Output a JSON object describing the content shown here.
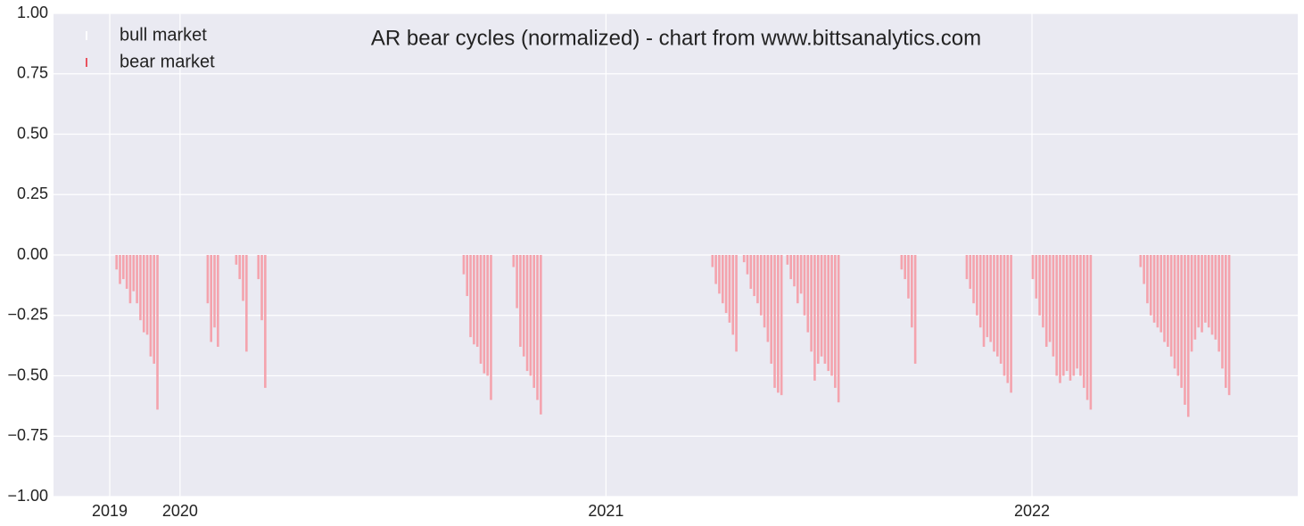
{
  "chart_data": {
    "type": "bar",
    "title": "AR bear cycles (normalized)  - chart from www.bittsanalytics.com",
    "series": [
      {
        "name": "bull market",
        "color": "#ffffff",
        "x": [],
        "values": []
      },
      {
        "name": "bear market",
        "color": "#f4a3ad",
        "x": [
          2019.851,
          2019.859,
          2019.867,
          2019.875,
          2019.883,
          2019.891,
          2019.899,
          2019.907,
          2019.915,
          2019.923,
          2019.931,
          2019.939,
          2019.947,
          2020.065,
          2020.073,
          2020.081,
          2020.089,
          2020.132,
          2020.14,
          2020.148,
          2020.156,
          2020.184,
          2020.192,
          2020.2,
          2020.666,
          2020.674,
          2020.682,
          2020.69,
          2020.698,
          2020.706,
          2020.714,
          2020.722,
          2020.73,
          2020.783,
          2020.791,
          2020.799,
          2020.807,
          2020.815,
          2020.823,
          2020.831,
          2020.839,
          2020.847,
          2021.25,
          2021.258,
          2021.266,
          2021.274,
          2021.282,
          2021.29,
          2021.298,
          2021.306,
          2021.324,
          2021.332,
          2021.34,
          2021.348,
          2021.356,
          2021.364,
          2021.372,
          2021.38,
          2021.388,
          2021.396,
          2021.404,
          2021.412,
          2021.426,
          2021.434,
          2021.442,
          2021.45,
          2021.458,
          2021.466,
          2021.474,
          2021.482,
          2021.49,
          2021.498,
          2021.506,
          2021.514,
          2021.522,
          2021.53,
          2021.538,
          2021.546,
          2021.694,
          2021.702,
          2021.71,
          2021.718,
          2021.726,
          2021.847,
          2021.855,
          2021.863,
          2021.871,
          2021.879,
          2021.887,
          2021.895,
          2021.903,
          2021.911,
          2021.919,
          2021.927,
          2021.935,
          2021.943,
          2021.951,
          2022.002,
          2022.01,
          2022.018,
          2022.026,
          2022.034,
          2022.042,
          2022.05,
          2022.058,
          2022.066,
          2022.074,
          2022.082,
          2022.09,
          2022.098,
          2022.106,
          2022.114,
          2022.122,
          2022.13,
          2022.138,
          2022.255,
          2022.263,
          2022.271,
          2022.279,
          2022.287,
          2022.295,
          2022.303,
          2022.311,
          2022.319,
          2022.327,
          2022.335,
          2022.343,
          2022.351,
          2022.359,
          2022.367,
          2022.375,
          2022.383,
          2022.391,
          2022.399,
          2022.407,
          2022.415,
          2022.423,
          2022.431,
          2022.439,
          2022.447,
          2022.455,
          2022.463
        ],
        "values": [
          -0.06,
          -0.12,
          -0.1,
          -0.14,
          -0.2,
          -0.15,
          -0.2,
          -0.27,
          -0.32,
          -0.33,
          -0.42,
          -0.45,
          -0.64,
          -0.2,
          -0.36,
          -0.3,
          -0.38,
          -0.04,
          -0.1,
          -0.19,
          -0.4,
          -0.1,
          -0.27,
          -0.55,
          -0.08,
          -0.17,
          -0.34,
          -0.37,
          -0.38,
          -0.45,
          -0.49,
          -0.5,
          -0.6,
          -0.05,
          -0.22,
          -0.38,
          -0.42,
          -0.48,
          -0.5,
          -0.55,
          -0.6,
          -0.66,
          -0.05,
          -0.12,
          -0.16,
          -0.2,
          -0.24,
          -0.28,
          -0.33,
          -0.4,
          -0.03,
          -0.08,
          -0.14,
          -0.17,
          -0.2,
          -0.25,
          -0.3,
          -0.36,
          -0.45,
          -0.55,
          -0.57,
          -0.58,
          -0.04,
          -0.1,
          -0.13,
          -0.2,
          -0.16,
          -0.25,
          -0.32,
          -0.4,
          -0.52,
          -0.45,
          -0.42,
          -0.45,
          -0.48,
          -0.5,
          -0.55,
          -0.61,
          -0.06,
          -0.1,
          -0.18,
          -0.3,
          -0.45,
          -0.1,
          -0.14,
          -0.2,
          -0.25,
          -0.3,
          -0.38,
          -0.34,
          -0.36,
          -0.4,
          -0.42,
          -0.45,
          -0.5,
          -0.53,
          -0.57,
          -0.1,
          -0.18,
          -0.25,
          -0.3,
          -0.38,
          -0.36,
          -0.42,
          -0.5,
          -0.53,
          -0.5,
          -0.48,
          -0.52,
          -0.5,
          -0.47,
          -0.5,
          -0.55,
          -0.6,
          -0.64,
          -0.05,
          -0.12,
          -0.2,
          -0.25,
          -0.28,
          -0.3,
          -0.32,
          -0.36,
          -0.38,
          -0.42,
          -0.47,
          -0.5,
          -0.55,
          -0.62,
          -0.67,
          -0.4,
          -0.35,
          -0.3,
          -0.32,
          -0.28,
          -0.3,
          -0.33,
          -0.35,
          -0.4,
          -0.47,
          -0.55,
          -0.58
        ]
      }
    ],
    "xlim": [
      2019.703,
      2022.624
    ],
    "xticks": [
      {
        "value": 2019.835,
        "label": "2019"
      },
      {
        "value": 2020,
        "label": "2020"
      },
      {
        "value": 2021,
        "label": "2021"
      },
      {
        "value": 2022,
        "label": "2022"
      }
    ],
    "ylim": [
      -1,
      1
    ],
    "yticks": [
      {
        "value": -1,
        "label": "−1.00"
      },
      {
        "value": -0.75,
        "label": "−0.75"
      },
      {
        "value": -0.5,
        "label": "−0.50"
      },
      {
        "value": -0.25,
        "label": "−0.25"
      },
      {
        "value": 0,
        "label": "0.00"
      },
      {
        "value": 0.25,
        "label": "0.25"
      },
      {
        "value": 0.5,
        "label": "0.50"
      },
      {
        "value": 0.75,
        "label": "0.75"
      },
      {
        "value": 1,
        "label": "1.00"
      }
    ],
    "grid": true,
    "legend": "upper left"
  }
}
